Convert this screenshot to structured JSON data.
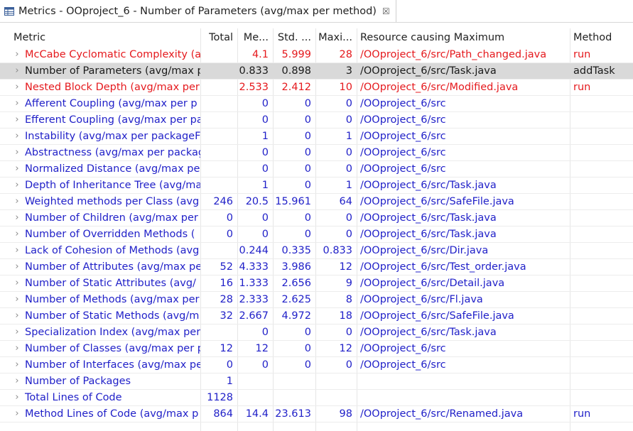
{
  "tab": {
    "title": "Metrics - OOproject_6 - Number of Parameters (avg/max per method)",
    "close_glyph": "☒"
  },
  "columns": [
    "Metric",
    "Total",
    "Me...",
    "Std. ...",
    "Maxi...",
    "Resource causing Maximum",
    "Method"
  ],
  "rows": [
    {
      "metric": "McCabe Cyclomatic Complexity (a",
      "total": "",
      "mean": "4.1",
      "std": "5.999",
      "max": "28",
      "resource": "/OOproject_6/src/Path_changed.java",
      "method": "run",
      "color": "red",
      "selected": false,
      "expandable": true
    },
    {
      "metric": "Number of Parameters (avg/max p",
      "total": "",
      "mean": "0.833",
      "std": "0.898",
      "max": "3",
      "resource": "/OOproject_6/src/Task.java",
      "method": "addTask",
      "color": "black",
      "selected": true,
      "expandable": true
    },
    {
      "metric": "Nested Block Depth (avg/max per",
      "total": "",
      "mean": "2.533",
      "std": "2.412",
      "max": "10",
      "resource": "/OOproject_6/src/Modified.java",
      "method": "run",
      "color": "red",
      "selected": false,
      "expandable": true
    },
    {
      "metric": "Afferent Coupling (avg/max per p",
      "total": "",
      "mean": "0",
      "std": "0",
      "max": "0",
      "resource": "/OOproject_6/src",
      "method": "",
      "color": "blue",
      "selected": false,
      "expandable": true
    },
    {
      "metric": "Efferent Coupling (avg/max per pa",
      "total": "",
      "mean": "0",
      "std": "0",
      "max": "0",
      "resource": "/OOproject_6/src",
      "method": "",
      "color": "blue",
      "selected": false,
      "expandable": true
    },
    {
      "metric": "Instability (avg/max per packageFr",
      "total": "",
      "mean": "1",
      "std": "0",
      "max": "1",
      "resource": "/OOproject_6/src",
      "method": "",
      "color": "blue",
      "selected": false,
      "expandable": true
    },
    {
      "metric": "Abstractness (avg/max per packag",
      "total": "",
      "mean": "0",
      "std": "0",
      "max": "0",
      "resource": "/OOproject_6/src",
      "method": "",
      "color": "blue",
      "selected": false,
      "expandable": true
    },
    {
      "metric": "Normalized Distance (avg/max pe",
      "total": "",
      "mean": "0",
      "std": "0",
      "max": "0",
      "resource": "/OOproject_6/src",
      "method": "",
      "color": "blue",
      "selected": false,
      "expandable": true
    },
    {
      "metric": "Depth of Inheritance Tree (avg/ma",
      "total": "",
      "mean": "1",
      "std": "0",
      "max": "1",
      "resource": "/OOproject_6/src/Task.java",
      "method": "",
      "color": "blue",
      "selected": false,
      "expandable": true
    },
    {
      "metric": "Weighted methods per Class (avg",
      "total": "246",
      "mean": "20.5",
      "std": "15.961",
      "max": "64",
      "resource": "/OOproject_6/src/SafeFile.java",
      "method": "",
      "color": "blue",
      "selected": false,
      "expandable": true
    },
    {
      "metric": "Number of Children (avg/max per",
      "total": "0",
      "mean": "0",
      "std": "0",
      "max": "0",
      "resource": "/OOproject_6/src/Task.java",
      "method": "",
      "color": "blue",
      "selected": false,
      "expandable": true
    },
    {
      "metric": "Number of Overridden Methods (",
      "total": "0",
      "mean": "0",
      "std": "0",
      "max": "0",
      "resource": "/OOproject_6/src/Task.java",
      "method": "",
      "color": "blue",
      "selected": false,
      "expandable": true
    },
    {
      "metric": "Lack of Cohesion of Methods (avg",
      "total": "",
      "mean": "0.244",
      "std": "0.335",
      "max": "0.833",
      "resource": "/OOproject_6/src/Dir.java",
      "method": "",
      "color": "blue",
      "selected": false,
      "expandable": true
    },
    {
      "metric": "Number of Attributes (avg/max pe",
      "total": "52",
      "mean": "4.333",
      "std": "3.986",
      "max": "12",
      "resource": "/OOproject_6/src/Test_order.java",
      "method": "",
      "color": "blue",
      "selected": false,
      "expandable": true
    },
    {
      "metric": "Number of Static Attributes (avg/",
      "total": "16",
      "mean": "1.333",
      "std": "2.656",
      "max": "9",
      "resource": "/OOproject_6/src/Detail.java",
      "method": "",
      "color": "blue",
      "selected": false,
      "expandable": true
    },
    {
      "metric": "Number of Methods (avg/max per",
      "total": "28",
      "mean": "2.333",
      "std": "2.625",
      "max": "8",
      "resource": "/OOproject_6/src/Fl.java",
      "method": "",
      "color": "blue",
      "selected": false,
      "expandable": true
    },
    {
      "metric": "Number of Static Methods (avg/m",
      "total": "32",
      "mean": "2.667",
      "std": "4.972",
      "max": "18",
      "resource": "/OOproject_6/src/SafeFile.java",
      "method": "",
      "color": "blue",
      "selected": false,
      "expandable": true
    },
    {
      "metric": "Specialization Index (avg/max per",
      "total": "",
      "mean": "0",
      "std": "0",
      "max": "0",
      "resource": "/OOproject_6/src/Task.java",
      "method": "",
      "color": "blue",
      "selected": false,
      "expandable": true
    },
    {
      "metric": "Number of Classes (avg/max per p",
      "total": "12",
      "mean": "12",
      "std": "0",
      "max": "12",
      "resource": "/OOproject_6/src",
      "method": "",
      "color": "blue",
      "selected": false,
      "expandable": true
    },
    {
      "metric": "Number of Interfaces (avg/max pe",
      "total": "0",
      "mean": "0",
      "std": "0",
      "max": "0",
      "resource": "/OOproject_6/src",
      "method": "",
      "color": "blue",
      "selected": false,
      "expandable": true
    },
    {
      "metric": "Number of Packages",
      "total": "1",
      "mean": "",
      "std": "",
      "max": "",
      "resource": "",
      "method": "",
      "color": "blue",
      "selected": false,
      "expandable": true
    },
    {
      "metric": "Total Lines of Code",
      "total": "1128",
      "mean": "",
      "std": "",
      "max": "",
      "resource": "",
      "method": "",
      "color": "blue",
      "selected": false,
      "expandable": true
    },
    {
      "metric": "Method Lines of Code (avg/max p",
      "total": "864",
      "mean": "14.4",
      "std": "23.613",
      "max": "98",
      "resource": "/OOproject_6/src/Renamed.java",
      "method": "run",
      "color": "blue",
      "selected": false,
      "expandable": true
    }
  ],
  "colors": {
    "red": "#e5191d",
    "blue": "#1f1fc8",
    "black": "#1a1a1a",
    "selected_bg": "#d9d9d9"
  },
  "icons": {
    "tab": "metrics-table-icon",
    "expand": "chevron-right-icon"
  }
}
